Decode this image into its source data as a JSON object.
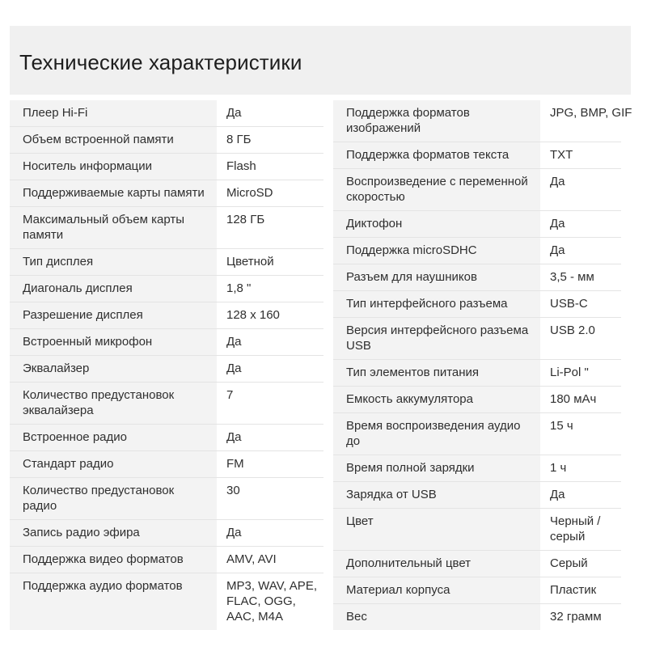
{
  "title": "Технические характеристики",
  "left_specs": [
    {
      "label": "Плеер Hi-Fi",
      "value": "Да"
    },
    {
      "label": "Объем встроенной памяти",
      "value": "8 ГБ"
    },
    {
      "label": "Носитель информации",
      "value": "Flash"
    },
    {
      "label": "Поддерживаемые карты памяти",
      "value": "MicroSD"
    },
    {
      "label": "Максимальный объем карты памяти",
      "value": "128 ГБ"
    },
    {
      "label": "Тип дисплея",
      "value": "Цветной"
    },
    {
      "label": "Диагональ дисплея",
      "value": "1,8 \""
    },
    {
      "label": "Разрешение дисплея",
      "value": "128 x 160"
    },
    {
      "label": "Встроенный микрофон",
      "value": "Да"
    },
    {
      "label": "Эквалайзер",
      "value": "Да"
    },
    {
      "label": "Количество предустановок эквалайзера",
      "value": "7"
    },
    {
      "label": "Встроенное радио",
      "value": "Да"
    },
    {
      "label": "Стандарт радио",
      "value": "FM"
    },
    {
      "label": "Количество предустановок радио",
      "value": "30"
    },
    {
      "label": "Запись радио эфира",
      "value": "Да"
    },
    {
      "label": "Поддержка видео форматов",
      "value": "AMV, AVI"
    },
    {
      "label": "Поддержка аудио форматов",
      "value": "MP3, WAV, APE, FLAC, OGG, AAC, M4A"
    }
  ],
  "right_specs": [
    {
      "label": "Поддержка форматов изображений",
      "value": "JPG, BMP, GIF"
    },
    {
      "label": "Поддержка форматов текста",
      "value": "TXT"
    },
    {
      "label": "Воспроизведение с переменной скоростью",
      "value": "Да"
    },
    {
      "label": "Диктофон",
      "value": "Да"
    },
    {
      "label": "Поддержка microSDHC",
      "value": "Да"
    },
    {
      "label": "Разъем для наушников",
      "value": "3,5 - мм"
    },
    {
      "label": "Тип интерфейсного разъема",
      "value": "USB-C"
    },
    {
      "label": "Версия интерфейсного разъема USB",
      "value": "USB 2.0"
    },
    {
      "label": "Тип элементов питания",
      "value": "Li-Pol \""
    },
    {
      "label": "Емкость аккумулятора",
      "value": "180 мАч"
    },
    {
      "label": "Время воспроизведения аудио до",
      "value": "15 ч"
    },
    {
      "label": "Время полной зарядки",
      "value": "1 ч"
    },
    {
      "label": "Зарядка от USB",
      "value": "Да"
    },
    {
      "label": "Цвет",
      "value": "Черный / серый"
    },
    {
      "label": "Дополнительный цвет",
      "value": "Серый"
    },
    {
      "label": "Материал корпуса",
      "value": "Пластик"
    },
    {
      "label": "Вес",
      "value": "32 грамм"
    }
  ]
}
